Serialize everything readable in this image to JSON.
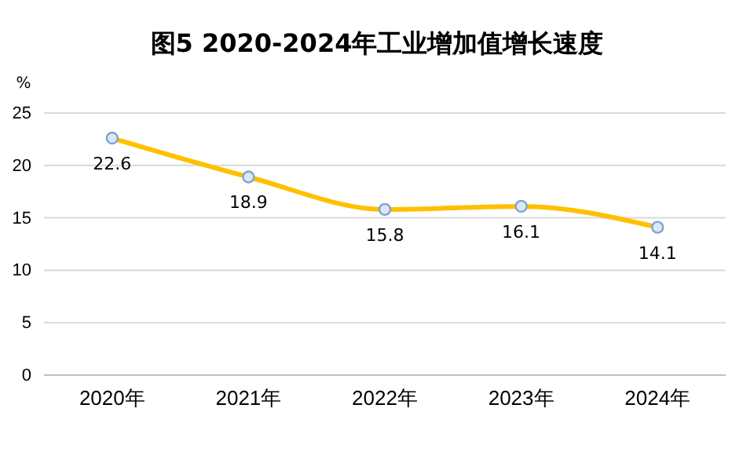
{
  "chart_data": {
    "type": "line",
    "title": "图5  2020-2024年工业增加值增长速度",
    "ylabel": "%",
    "categories": [
      "2020年",
      "2021年",
      "2022年",
      "2023年",
      "2024年"
    ],
    "series": [
      {
        "color": "#ffc000",
        "values": [
          22.6,
          18.9,
          15.8,
          16.1,
          14.1
        ]
      }
    ],
    "ylim": [
      0,
      25
    ],
    "yticks": [
      0,
      5,
      10,
      15,
      20,
      25
    ],
    "grid": "y",
    "marker": "circle",
    "line_style": "solid",
    "data_labels": true
  }
}
